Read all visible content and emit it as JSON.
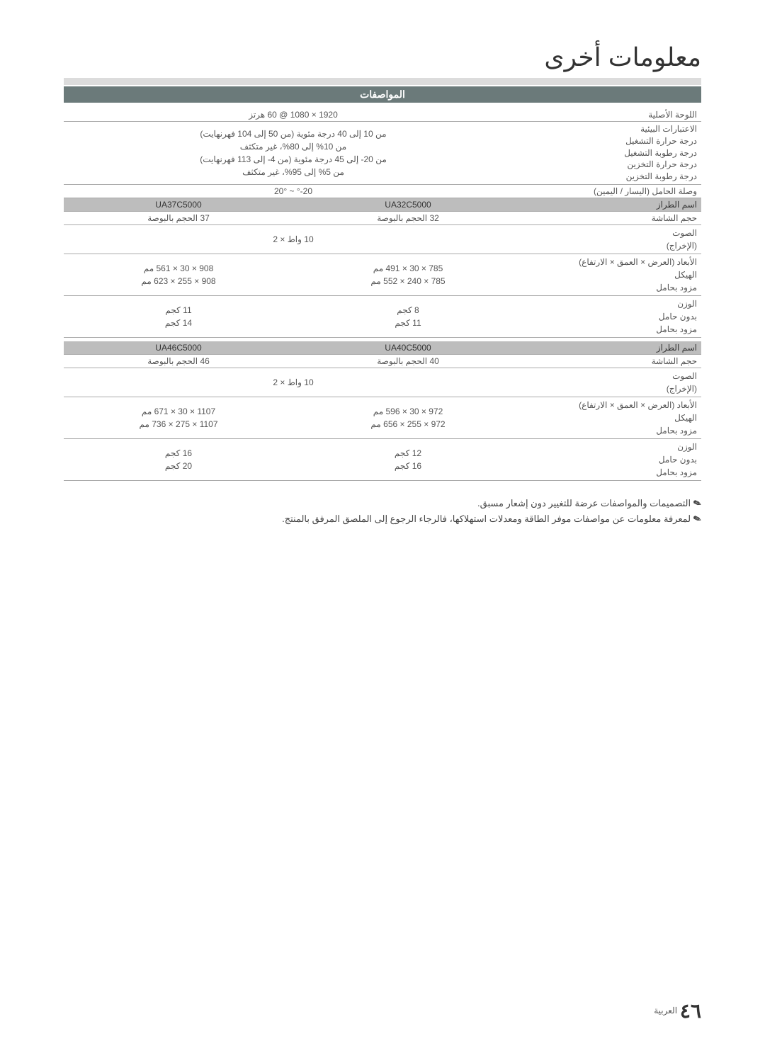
{
  "title": "معلومات أخرى",
  "sectionHeader": "المواصفات",
  "rows": {
    "nativePanel": {
      "label": "اللوحة الأصلية",
      "value": "1920 × 1080 @ 60 هرتز"
    },
    "env": {
      "labels": "الاعتبارات البيئية\nدرجة حرارة التشغيل\nدرجة رطوبة التشغيل\nدرجة حرارة التخزين\nدرجة رطوبة التخزين",
      "values": "من 10 إلى 40 درجة مئوية (من 50 إلى 104 فهرنهايت)\nمن 10% إلى 80%، غير متكثف\nمن 20- إلى 45 درجة مئوية (من 4- إلى 113 فهرنهايت)\nمن 5% إلى 95%، غير متكثف"
    },
    "standTilt": {
      "label": "وصلة الحامل (اليسار / اليمين)",
      "value": "20-° ~ 20°"
    },
    "modelLabel": "اسم الطراز",
    "screenLabel": "حجم الشاشة",
    "soundLabel": "الصوت\n(الإخراج)",
    "dimLabel": "الأبعاد (العرض × العمق × الارتفاع)\nالهيكل\nمزود بحامل",
    "weightLabel": "الوزن\nبدون حامل\nمزود بحامل",
    "g1": {
      "m1": "UA32C5000",
      "m2": "UA37C5000",
      "s1": "32 الحجم بالبوصة",
      "s2": "37 الحجم بالبوصة",
      "sound": "10 واط × 2",
      "d1": "785 × 30 × 491 مم\n785 × 240 × 552 مم",
      "d2": "908 × 30 × 561 مم\n908 × 255 × 623 مم",
      "w1": "8 كجم\n11 كجم",
      "w2": "11 كجم\n14 كجم"
    },
    "g2": {
      "m1": "UA40C5000",
      "m2": "UA46C5000",
      "s1": "40 الحجم بالبوصة",
      "s2": "46 الحجم بالبوصة",
      "sound": "10 واط × 2",
      "d1": "972 × 30 × 596 مم\n972 × 255 × 656 مم",
      "d2": "1107 × 30 × 671 مم\n1107 × 275 × 736 مم",
      "w1": "12 كجم\n16 كجم",
      "w2": "16 كجم\n20 كجم"
    }
  },
  "notes": [
    "التصميمات والمواصفات عرضة للتغيير دون إشعار مسبق.",
    "لمعرفة معلومات عن مواصفات موفر الطاقة ومعدلات استهلاكها، فالرجاء الرجوع إلى الملصق المرفق بالمنتج."
  ],
  "footer": {
    "pageNum": "٤٦",
    "lang": "العربية"
  }
}
